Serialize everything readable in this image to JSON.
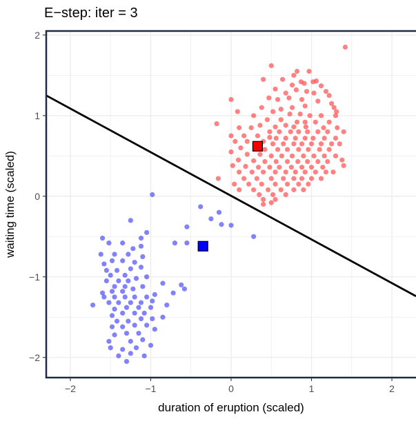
{
  "chart_data": {
    "type": "scatter",
    "title": "E−step: iter =  3",
    "xlabel": "duration of eruption (scaled)",
    "ylabel": "waiting time (scaled)",
    "xlim": [
      -2.3,
      2.3
    ],
    "ylim": [
      -2.25,
      2.05
    ],
    "xticks": [
      -2,
      -1,
      0,
      1,
      2
    ],
    "yticks": [
      -2,
      -1,
      0,
      1,
      2
    ],
    "xtick_labels": [
      "−2",
      "−1",
      "0",
      "1",
      "2"
    ],
    "ytick_labels": [
      "−2",
      "−1",
      "0",
      "1",
      "2"
    ],
    "grid": true,
    "colors": {
      "cluster_red": "#ff4d4d",
      "cluster_blue": "#4d4dff",
      "center_red": "#ff0000",
      "center_blue": "#0000ff",
      "boundary": "#000000",
      "frame": "#1f2a44",
      "grid": "#ebebeb"
    },
    "series": [
      {
        "color": "#ff4d4d",
        "points": [
          [
            1.42,
            1.85
          ],
          [
            0.5,
            1.62
          ],
          [
            0.82,
            1.55
          ],
          [
            0.78,
            1.5
          ],
          [
            0.97,
            1.55
          ],
          [
            0.64,
            1.45
          ],
          [
            0.4,
            1.45
          ],
          [
            0.76,
            1.38
          ],
          [
            0.87,
            1.42
          ],
          [
            0.91,
            1.4
          ],
          [
            1.02,
            1.42
          ],
          [
            1.06,
            1.43
          ],
          [
            1.12,
            1.37
          ],
          [
            0.81,
            1.32
          ],
          [
            0.94,
            1.3
          ],
          [
            1.03,
            1.28
          ],
          [
            1.18,
            1.3
          ],
          [
            0.68,
            1.28
          ],
          [
            0.55,
            1.33
          ],
          [
            1.22,
            1.25
          ],
          [
            0.47,
            1.22
          ],
          [
            0.58,
            1.2
          ],
          [
            0.72,
            1.22
          ],
          [
            0.88,
            1.2
          ],
          [
            1.08,
            1.18
          ],
          [
            1.25,
            1.15
          ],
          [
            0.92,
            1.12
          ],
          [
            1.28,
            1.1
          ],
          [
            0.62,
            1.08
          ],
          [
            0.76,
            1.1
          ],
          [
            1.31,
            1.05
          ],
          [
            0.0,
            1.2
          ],
          [
            0.38,
            1.1
          ],
          [
            0.52,
            1.05
          ],
          [
            0.73,
            1.02
          ],
          [
            0.86,
            1.02
          ],
          [
            0.98,
            1.0
          ],
          [
            1.12,
            1.0
          ],
          [
            1.3,
            1.0
          ],
          [
            0.08,
            1.05
          ],
          [
            0.28,
            1.0
          ],
          [
            0.45,
            0.95
          ],
          [
            0.62,
            0.95
          ],
          [
            0.82,
            0.92
          ],
          [
            0.92,
            0.92
          ],
          [
            1.05,
            0.92
          ],
          [
            1.22,
            0.92
          ],
          [
            0.36,
            0.88
          ],
          [
            0.55,
            0.86
          ],
          [
            0.68,
            0.88
          ],
          [
            0.78,
            0.86
          ],
          [
            0.93,
            0.86
          ],
          [
            1.15,
            0.85
          ],
          [
            1.32,
            0.85
          ],
          [
            -0.18,
            0.9
          ],
          [
            0.1,
            0.85
          ],
          [
            0.25,
            0.85
          ],
          [
            0.48,
            0.8
          ],
          [
            0.6,
            0.8
          ],
          [
            0.74,
            0.8
          ],
          [
            0.84,
            0.8
          ],
          [
            0.95,
            0.8
          ],
          [
            1.08,
            0.8
          ],
          [
            1.2,
            0.8
          ],
          [
            1.4,
            0.8
          ],
          [
            0.0,
            0.75
          ],
          [
            0.16,
            0.75
          ],
          [
            0.33,
            0.75
          ],
          [
            0.48,
            0.73
          ],
          [
            0.56,
            0.72
          ],
          [
            0.68,
            0.72
          ],
          [
            0.8,
            0.72
          ],
          [
            0.92,
            0.72
          ],
          [
            1.02,
            0.72
          ],
          [
            1.16,
            0.72
          ],
          [
            1.3,
            0.72
          ],
          [
            0.05,
            0.68
          ],
          [
            0.2,
            0.68
          ],
          [
            0.4,
            0.68
          ],
          [
            0.52,
            0.65
          ],
          [
            0.65,
            0.65
          ],
          [
            0.78,
            0.65
          ],
          [
            0.88,
            0.65
          ],
          [
            1.0,
            0.65
          ],
          [
            1.12,
            0.65
          ],
          [
            1.25,
            0.65
          ],
          [
            1.35,
            0.65
          ],
          [
            0.12,
            0.6
          ],
          [
            0.3,
            0.6
          ],
          [
            0.42,
            0.58
          ],
          [
            0.58,
            0.58
          ],
          [
            0.7,
            0.58
          ],
          [
            0.84,
            0.58
          ],
          [
            0.96,
            0.58
          ],
          [
            1.1,
            0.58
          ],
          [
            1.22,
            0.58
          ],
          [
            0.0,
            0.55
          ],
          [
            0.2,
            0.52
          ],
          [
            0.36,
            0.52
          ],
          [
            0.5,
            0.5
          ],
          [
            0.63,
            0.5
          ],
          [
            0.76,
            0.5
          ],
          [
            0.9,
            0.5
          ],
          [
            1.03,
            0.5
          ],
          [
            1.16,
            0.5
          ],
          [
            1.3,
            0.5
          ],
          [
            0.09,
            0.45
          ],
          [
            0.28,
            0.44
          ],
          [
            0.42,
            0.43
          ],
          [
            0.56,
            0.43
          ],
          [
            0.7,
            0.43
          ],
          [
            0.83,
            0.43
          ],
          [
            0.95,
            0.43
          ],
          [
            1.08,
            0.43
          ],
          [
            1.2,
            0.43
          ],
          [
            1.38,
            0.45
          ],
          [
            0.02,
            0.38
          ],
          [
            0.18,
            0.37
          ],
          [
            0.34,
            0.36
          ],
          [
            0.48,
            0.36
          ],
          [
            0.6,
            0.36
          ],
          [
            0.75,
            0.36
          ],
          [
            0.88,
            0.36
          ],
          [
            1.0,
            0.36
          ],
          [
            1.14,
            0.36
          ],
          [
            1.4,
            0.38
          ],
          [
            0.1,
            0.3
          ],
          [
            0.26,
            0.3
          ],
          [
            0.4,
            0.3
          ],
          [
            0.55,
            0.3
          ],
          [
            0.68,
            0.3
          ],
          [
            0.8,
            0.3
          ],
          [
            0.92,
            0.3
          ],
          [
            1.05,
            0.3
          ],
          [
            1.18,
            0.3
          ],
          [
            1.27,
            0.3
          ],
          [
            0.16,
            0.22
          ],
          [
            0.32,
            0.22
          ],
          [
            0.5,
            0.22
          ],
          [
            0.65,
            0.22
          ],
          [
            0.78,
            0.22
          ],
          [
            0.88,
            0.22
          ],
          [
            1.0,
            0.22
          ],
          [
            1.12,
            0.22
          ],
          [
            -0.16,
            0.22
          ],
          [
            0.04,
            0.15
          ],
          [
            0.22,
            0.15
          ],
          [
            0.38,
            0.15
          ],
          [
            0.55,
            0.15
          ],
          [
            0.7,
            0.15
          ],
          [
            0.84,
            0.15
          ],
          [
            0.96,
            0.15
          ],
          [
            0.1,
            0.08
          ],
          [
            0.28,
            0.08
          ],
          [
            0.46,
            0.08
          ],
          [
            0.62,
            0.08
          ],
          [
            0.78,
            0.08
          ],
          [
            0.9,
            0.08
          ],
          [
            0.35,
            0.02
          ],
          [
            0.52,
            0.02
          ],
          [
            0.68,
            0.02
          ],
          [
            0.4,
            -0.04
          ],
          [
            0.55,
            -0.04
          ],
          [
            0.4,
            -0.1
          ],
          [
            0.5,
            -0.08
          ]
        ]
      },
      {
        "color": "#4d4dff",
        "points": [
          [
            -0.98,
            0.02
          ],
          [
            -0.38,
            -0.13
          ],
          [
            -0.15,
            -0.2
          ],
          [
            -0.25,
            -0.28
          ],
          [
            -0.12,
            -0.35
          ],
          [
            0.0,
            -0.36
          ],
          [
            -0.55,
            -0.38
          ],
          [
            -1.25,
            -0.3
          ],
          [
            -1.05,
            -0.45
          ],
          [
            -1.12,
            -0.52
          ],
          [
            -1.6,
            -0.52
          ],
          [
            -0.55,
            -0.58
          ],
          [
            -0.7,
            -0.58
          ],
          [
            0.28,
            -0.5
          ],
          [
            -1.12,
            -0.62
          ],
          [
            -1.22,
            -0.65
          ],
          [
            -1.35,
            -0.58
          ],
          [
            -1.52,
            -0.58
          ],
          [
            -1.28,
            -0.72
          ],
          [
            -1.45,
            -0.72
          ],
          [
            -1.62,
            -0.72
          ],
          [
            -1.1,
            -0.75
          ],
          [
            -1.2,
            -0.82
          ],
          [
            -1.35,
            -0.8
          ],
          [
            -1.48,
            -0.8
          ],
          [
            -1.58,
            -0.84
          ],
          [
            -1.12,
            -0.88
          ],
          [
            -1.25,
            -0.9
          ],
          [
            -1.42,
            -0.92
          ],
          [
            -1.55,
            -0.92
          ],
          [
            -1.32,
            -0.98
          ],
          [
            -1.5,
            -0.98
          ],
          [
            -1.05,
            -1.0
          ],
          [
            -1.18,
            -1.02
          ],
          [
            -1.28,
            -1.05
          ],
          [
            -1.4,
            -1.05
          ],
          [
            -1.55,
            -1.05
          ],
          [
            -1.32,
            -1.12
          ],
          [
            -1.45,
            -1.12
          ],
          [
            -0.62,
            -1.1
          ],
          [
            -0.58,
            -1.15
          ],
          [
            -0.85,
            -1.08
          ],
          [
            -1.1,
            -1.12
          ],
          [
            -1.22,
            -1.15
          ],
          [
            -1.35,
            -1.18
          ],
          [
            -1.48,
            -1.18
          ],
          [
            -1.6,
            -1.2
          ],
          [
            -0.72,
            -1.2
          ],
          [
            -0.95,
            -1.22
          ],
          [
            -1.05,
            -1.25
          ],
          [
            -1.2,
            -1.25
          ],
          [
            -1.32,
            -1.25
          ],
          [
            -1.45,
            -1.25
          ],
          [
            -1.58,
            -1.25
          ],
          [
            -0.98,
            -1.3
          ],
          [
            -1.12,
            -1.32
          ],
          [
            -1.25,
            -1.32
          ],
          [
            -1.4,
            -1.32
          ],
          [
            -1.52,
            -1.32
          ],
          [
            -1.72,
            -1.35
          ],
          [
            -1.0,
            -1.38
          ],
          [
            -1.15,
            -1.38
          ],
          [
            -1.3,
            -1.38
          ],
          [
            -1.45,
            -1.4
          ],
          [
            -0.8,
            -1.35
          ],
          [
            -1.08,
            -1.45
          ],
          [
            -1.2,
            -1.45
          ],
          [
            -1.35,
            -1.45
          ],
          [
            -1.48,
            -1.48
          ],
          [
            -0.85,
            -1.5
          ],
          [
            -0.98,
            -1.52
          ],
          [
            -1.12,
            -1.52
          ],
          [
            -1.28,
            -1.55
          ],
          [
            -1.42,
            -1.55
          ],
          [
            -1.05,
            -1.6
          ],
          [
            -1.2,
            -1.6
          ],
          [
            -1.35,
            -1.62
          ],
          [
            -1.48,
            -1.62
          ],
          [
            -0.95,
            -1.65
          ],
          [
            -1.15,
            -1.7
          ],
          [
            -1.3,
            -1.7
          ],
          [
            -1.45,
            -1.72
          ],
          [
            -1.1,
            -1.78
          ],
          [
            -1.25,
            -1.8
          ],
          [
            -1.52,
            -1.8
          ],
          [
            -1.0,
            -1.85
          ],
          [
            -1.18,
            -1.88
          ],
          [
            -1.35,
            -1.9
          ],
          [
            -1.5,
            -1.88
          ],
          [
            -1.25,
            -1.95
          ],
          [
            -1.08,
            -1.98
          ],
          [
            -1.4,
            -1.98
          ],
          [
            -1.3,
            -2.05
          ]
        ]
      }
    ],
    "centers": [
      {
        "x": 0.33,
        "y": 0.62,
        "color": "#ff0000"
      },
      {
        "x": -0.35,
        "y": -0.62,
        "color": "#0000ff"
      }
    ],
    "boundary_line": [
      [
        -2.3,
        1.25
      ],
      [
        2.3,
        -1.24
      ]
    ]
  }
}
